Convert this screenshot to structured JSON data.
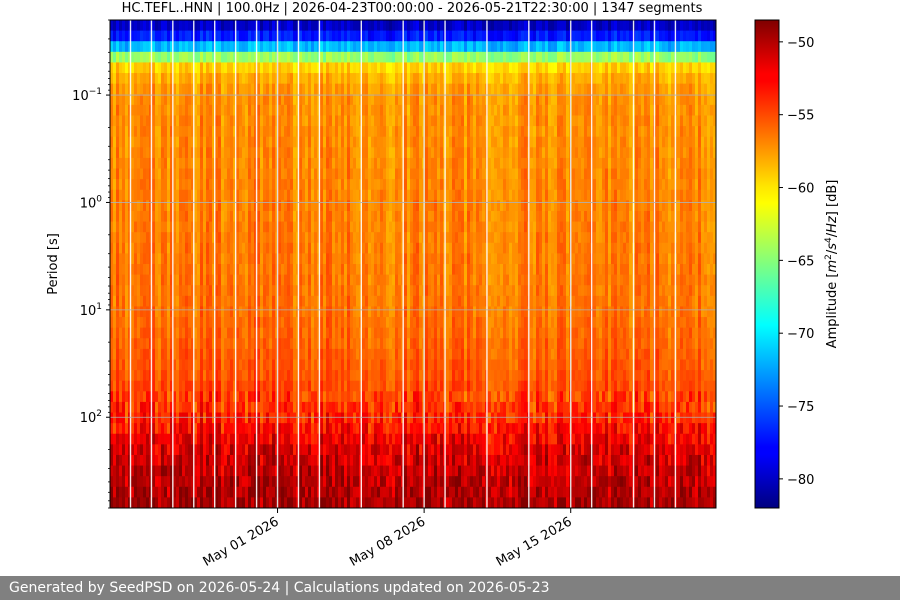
{
  "chart_data": {
    "type": "heatmap",
    "title": "HC.TEFL..HNN | 100.0Hz | 2026-04-23T00:00:00 - 2026-05-21T22:30:00 | 1347 segments",
    "ylabel": "Period [s]",
    "y_scale": "log",
    "y_inverted": true,
    "ylim": [
      0.02,
      700
    ],
    "y_ticks": [
      {
        "value": 0.1,
        "base": "10",
        "exp": "−1"
      },
      {
        "value": 1,
        "base": "10",
        "exp": "0"
      },
      {
        "value": 10,
        "base": "10",
        "exp": "1"
      },
      {
        "value": 100,
        "base": "10",
        "exp": "2"
      }
    ],
    "xlim": [
      "2026-04-23T00:00:00",
      "2026-05-21T22:30:00"
    ],
    "x_ticks": [
      {
        "date": "2026-05-01",
        "label": "May 01 2026"
      },
      {
        "date": "2026-05-08",
        "label": "May 08 2026"
      },
      {
        "date": "2026-05-15",
        "label": "May 15 2026"
      }
    ],
    "gaps": [
      "2026-04-23T23:30:00",
      "2026-04-24T23:30:00",
      "2026-04-26T00:00:00",
      "2026-04-27T00:00:00",
      "2026-04-28T00:00:00",
      "2026-04-29T00:00:00",
      "2026-04-30T00:00:00",
      "2026-05-01T00:00:00",
      "2026-05-02T00:00:00",
      "2026-05-03T00:00:00",
      "2026-05-05T00:00:00",
      "2026-05-07T00:00:00",
      "2026-05-08T00:00:00",
      "2026-05-09T00:00:00",
      "2026-05-11T00:00:00",
      "2026-05-13T00:00:00",
      "2026-05-15T00:00:00",
      "2026-05-16T00:00:00",
      "2026-05-18T00:00:00",
      "2026-05-19T00:00:00",
      "2026-05-20T00:00:00"
    ],
    "profile": [
      {
        "period": 0.02,
        "amplitude_db": -80.5
      },
      {
        "period": 0.025,
        "amplitude_db": -79
      },
      {
        "period": 0.03,
        "amplitude_db": -76
      },
      {
        "period": 0.035,
        "amplitude_db": -72
      },
      {
        "period": 0.04,
        "amplitude_db": -68
      },
      {
        "period": 0.045,
        "amplitude_db": -64
      },
      {
        "period": 0.05,
        "amplitude_db": -60.5
      },
      {
        "period": 0.06,
        "amplitude_db": -59
      },
      {
        "period": 0.08,
        "amplitude_db": -58
      },
      {
        "period": 0.1,
        "amplitude_db": -57.5
      },
      {
        "period": 1,
        "amplitude_db": -57
      },
      {
        "period": 10,
        "amplitude_db": -56.5
      },
      {
        "period": 40,
        "amplitude_db": -55.5
      },
      {
        "period": 100,
        "amplitude_db": -54
      },
      {
        "period": 200,
        "amplitude_db": -51.5
      },
      {
        "period": 700,
        "amplitude_db": -49.5
      }
    ],
    "colorbar": {
      "label_parts": [
        "Amplitude [",
        "m",
        "2",
        "/",
        "s",
        "4",
        "/",
        "Hz",
        "] [dB]"
      ],
      "range": [
        -82,
        -48.5
      ],
      "ticks": [
        -50,
        -55,
        -60,
        -65,
        -70,
        -75,
        -80
      ],
      "colormap": "jet"
    }
  },
  "footer": {
    "text": "Generated by SeedPSD on 2026-05-24 | Calculations updated on 2026-05-23"
  }
}
